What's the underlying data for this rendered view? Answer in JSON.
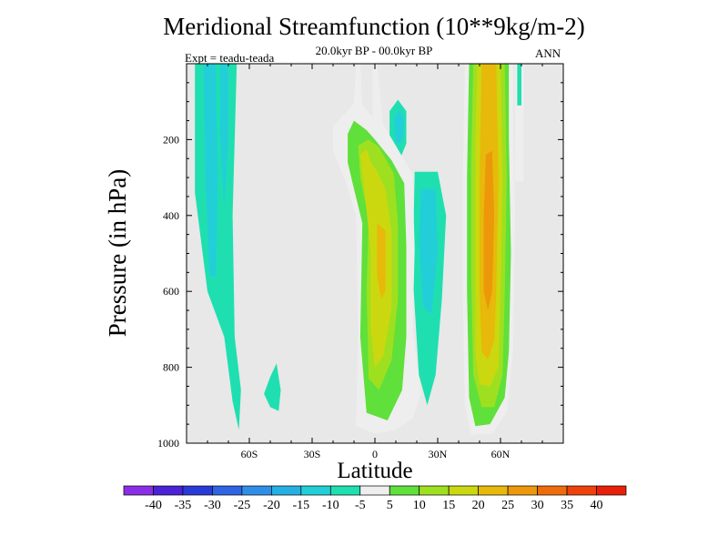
{
  "chart_data": {
    "type": "contour",
    "title": "Meridional Streamfunction (10**9kg/m-2)",
    "subtitle": "20.0kyr BP - 00.0kyr BP",
    "left_label": "Expt = teadu-teada",
    "right_label": "ANN",
    "xlabel": "Latitude",
    "ylabel": "Pressure (in hPa)",
    "xlim": [
      -90,
      90
    ],
    "ylim": [
      1000,
      0
    ],
    "x_ticks": [
      {
        "value": -60,
        "label": "60S"
      },
      {
        "value": -30,
        "label": "30S"
      },
      {
        "value": 0,
        "label": "0"
      },
      {
        "value": 30,
        "label": "30N"
      },
      {
        "value": 60,
        "label": "60N"
      }
    ],
    "y_ticks": [
      {
        "value": 200,
        "label": "200"
      },
      {
        "value": 400,
        "label": "400"
      },
      {
        "value": 600,
        "label": "600"
      },
      {
        "value": 800,
        "label": "800"
      },
      {
        "value": 1000,
        "label": "1000"
      }
    ],
    "colorbar": {
      "levels": [
        -40,
        -35,
        -30,
        -25,
        -20,
        -15,
        -10,
        -5,
        5,
        10,
        15,
        20,
        25,
        30,
        35,
        40
      ],
      "labels": [
        "-40",
        "-35",
        "-30",
        "-25",
        "-20",
        "-15",
        "-10",
        "-5",
        "5",
        "10",
        "15",
        "20",
        "25",
        "30",
        "35",
        "40"
      ],
      "colors": [
        "#8a2ee6",
        "#4b22d6",
        "#2a3ad8",
        "#2f64e3",
        "#2f8fe8",
        "#25b0e3",
        "#22cfd8",
        "#1fdfb0",
        "#eeeeee",
        "#5fe03a",
        "#9ee020",
        "#ccd80f",
        "#e6b90a",
        "#ec980a",
        "#ee6c0a",
        "#ee420a",
        "#e8200a"
      ]
    },
    "background": "#e8e8e8",
    "regions": [
      {
        "name": "sh-negative-cell-outer",
        "level": -5,
        "points": [
          [
            -86,
            0
          ],
          [
            -66,
            0
          ],
          [
            -68,
            400
          ],
          [
            -67,
            720
          ],
          [
            -64,
            860
          ],
          [
            -65,
            965
          ],
          [
            -68,
            890
          ],
          [
            -72,
            720
          ],
          [
            -80,
            600
          ],
          [
            -86,
            340
          ]
        ]
      },
      {
        "name": "sh-negative-cell-core",
        "level": -10,
        "points": [
          [
            -82,
            0
          ],
          [
            -76,
            0
          ],
          [
            -75,
            300
          ],
          [
            -76,
            560
          ],
          [
            -79,
            560
          ],
          [
            -81,
            300
          ]
        ]
      },
      {
        "name": "sh-negative-cell-core-2",
        "level": -10,
        "points": [
          [
            -74,
            0
          ],
          [
            -70,
            0
          ],
          [
            -70,
            200
          ],
          [
            -72,
            380
          ],
          [
            -74,
            200
          ]
        ]
      },
      {
        "name": "sh-negative-blob",
        "level": -5,
        "points": [
          [
            -50,
            825
          ],
          [
            -47,
            790
          ],
          [
            -45,
            860
          ],
          [
            -46,
            915
          ],
          [
            -50,
            905
          ],
          [
            -53,
            870
          ]
        ]
      },
      {
        "name": "nh-negative-upper-outer",
        "level": -5,
        "points": [
          [
            7,
            125
          ],
          [
            11,
            95
          ],
          [
            15,
            125
          ],
          [
            15,
            210
          ],
          [
            11,
            265
          ],
          [
            7,
            215
          ]
        ]
      },
      {
        "name": "nh-negative-upper-core",
        "level": -10,
        "points": [
          [
            9,
            145
          ],
          [
            12,
            120
          ],
          [
            14,
            150
          ],
          [
            13,
            205
          ],
          [
            10,
            210
          ]
        ]
      },
      {
        "name": "nh-negative-lower-outer",
        "level": -5,
        "points": [
          [
            19,
            285
          ],
          [
            30,
            285
          ],
          [
            34,
            400
          ],
          [
            32,
            620
          ],
          [
            29,
            820
          ],
          [
            25,
            900
          ],
          [
            21,
            820
          ],
          [
            18,
            550
          ]
        ]
      },
      {
        "name": "nh-negative-lower-core",
        "level": -10,
        "points": [
          [
            22,
            330
          ],
          [
            29,
            330
          ],
          [
            30,
            500
          ],
          [
            27,
            660
          ],
          [
            23,
            640
          ],
          [
            21,
            470
          ]
        ]
      },
      {
        "name": "hadley-5",
        "level": 5,
        "points": [
          [
            -9,
            0
          ],
          [
            -7,
            0
          ],
          [
            -6,
            110
          ],
          [
            -1,
            140
          ],
          [
            -1,
            0
          ],
          [
            1,
            0
          ],
          [
            4,
            160
          ],
          [
            12,
            235
          ],
          [
            18,
            290
          ],
          [
            19,
            490
          ],
          [
            18,
            700
          ],
          [
            22,
            870
          ],
          [
            18,
            935
          ],
          [
            10,
            965
          ],
          [
            0,
            975
          ],
          [
            -9,
            955
          ],
          [
            -8,
            700
          ],
          [
            -9,
            400
          ],
          [
            -14,
            310
          ],
          [
            -20,
            230
          ],
          [
            -20,
            165
          ],
          [
            -10,
            105
          ],
          [
            -9,
            0
          ]
        ]
      },
      {
        "name": "hadley-10",
        "level": 10,
        "points": [
          [
            -13,
            185
          ],
          [
            -10,
            150
          ],
          [
            -4,
            175
          ],
          [
            0,
            200
          ],
          [
            8,
            255
          ],
          [
            14,
            315
          ],
          [
            15,
            480
          ],
          [
            15,
            720
          ],
          [
            13,
            860
          ],
          [
            6,
            940
          ],
          [
            -4,
            920
          ],
          [
            -7,
            720
          ],
          [
            -6,
            420
          ],
          [
            -10,
            330
          ],
          [
            -13,
            260
          ]
        ]
      },
      {
        "name": "hadley-15",
        "level": 15,
        "points": [
          [
            -8,
            215
          ],
          [
            -3,
            200
          ],
          [
            2,
            220
          ],
          [
            9,
            290
          ],
          [
            11,
            420
          ],
          [
            11,
            620
          ],
          [
            8,
            780
          ],
          [
            2,
            860
          ],
          [
            -3,
            830
          ],
          [
            -4,
            600
          ],
          [
            -3,
            410
          ],
          [
            -7,
            300
          ]
        ]
      },
      {
        "name": "hadley-20",
        "level": 20,
        "points": [
          [
            -7,
            240
          ],
          [
            -4,
            225
          ],
          [
            -2,
            260
          ],
          [
            1,
            285
          ],
          [
            5,
            330
          ],
          [
            8,
            450
          ],
          [
            8,
            640
          ],
          [
            4,
            770
          ],
          [
            0,
            800
          ],
          [
            -2,
            700
          ],
          [
            -2,
            500
          ],
          [
            -5,
            330
          ]
        ]
      },
      {
        "name": "hadley-25",
        "level": 25,
        "points": [
          [
            1,
            420
          ],
          [
            5,
            440
          ],
          [
            5,
            600
          ],
          [
            3,
            620
          ],
          [
            1,
            560
          ]
        ]
      },
      {
        "name": "ferrel-5",
        "level": 5,
        "points": [
          [
            43,
            0
          ],
          [
            66,
            0
          ],
          [
            66,
            170
          ],
          [
            67,
            390
          ],
          [
            66,
            760
          ],
          [
            63,
            920
          ],
          [
            56,
            975
          ],
          [
            46,
            978
          ],
          [
            43,
            900
          ],
          [
            42,
            600
          ],
          [
            42,
            300
          ]
        ]
      },
      {
        "name": "ferrel-10",
        "level": 10,
        "points": [
          [
            45,
            0
          ],
          [
            64,
            0
          ],
          [
            64,
            200
          ],
          [
            65,
            500
          ],
          [
            64,
            760
          ],
          [
            62,
            880
          ],
          [
            55,
            950
          ],
          [
            48,
            955
          ],
          [
            45,
            880
          ],
          [
            44,
            600
          ],
          [
            44,
            300
          ]
        ]
      },
      {
        "name": "ferrel-15",
        "level": 15,
        "points": [
          [
            47,
            0
          ],
          [
            62,
            0
          ],
          [
            63,
            300
          ],
          [
            62,
            620
          ],
          [
            61,
            820
          ],
          [
            57,
            905
          ],
          [
            51,
            905
          ],
          [
            47,
            820
          ],
          [
            46,
            560
          ],
          [
            46,
            250
          ]
        ]
      },
      {
        "name": "ferrel-20",
        "level": 20,
        "points": [
          [
            49,
            0
          ],
          [
            60,
            0
          ],
          [
            61,
            300
          ],
          [
            60,
            600
          ],
          [
            59,
            800
          ],
          [
            55,
            850
          ],
          [
            50,
            845
          ],
          [
            48,
            760
          ],
          [
            48,
            500
          ],
          [
            48,
            200
          ]
        ]
      },
      {
        "name": "ferrel-25",
        "level": 25,
        "points": [
          [
            51,
            0
          ],
          [
            58,
            0
          ],
          [
            59,
            300
          ],
          [
            58,
            600
          ],
          [
            57,
            730
          ],
          [
            54,
            780
          ],
          [
            51,
            760
          ],
          [
            50,
            600
          ],
          [
            50,
            300
          ]
        ]
      },
      {
        "name": "ferrel-30",
        "level": 30,
        "points": [
          [
            53,
            240
          ],
          [
            56,
            230
          ],
          [
            57,
            400
          ],
          [
            56,
            600
          ],
          [
            54,
            650
          ],
          [
            52,
            600
          ],
          [
            52,
            400
          ]
        ]
      },
      {
        "name": "strip-a",
        "level": 5,
        "points": [
          [
            67,
            0
          ],
          [
            71,
            0
          ],
          [
            71,
            310
          ],
          [
            67,
            310
          ]
        ]
      },
      {
        "name": "strip-a-core",
        "level": -5,
        "points": [
          [
            68,
            0
          ],
          [
            70,
            0
          ],
          [
            70,
            110
          ],
          [
            68,
            110
          ]
        ]
      }
    ]
  }
}
